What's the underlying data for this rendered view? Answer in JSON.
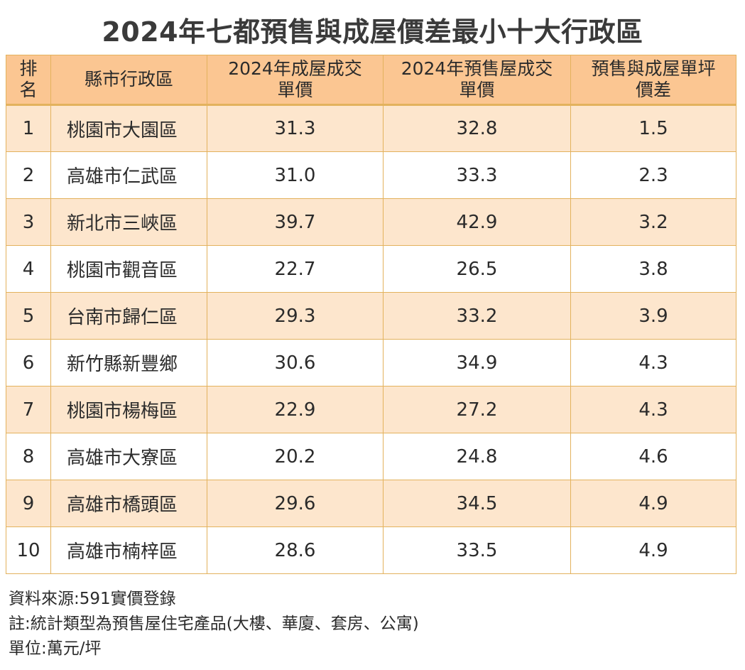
{
  "title": "2024年七都預售與成屋價差最小十大行政區",
  "chart_data": {
    "type": "table",
    "title": "2024年七都預售與成屋價差最小十大行政區",
    "columns": [
      "排名",
      "縣市行政區",
      "2024年成屋成交單價",
      "2024年預售屋成交單價",
      "預售與成屋單坪價差"
    ],
    "header_lines": [
      [
        "排",
        "名"
      ],
      [
        "縣市行政區",
        ""
      ],
      [
        "2024年成屋成交",
        "單價"
      ],
      [
        "2024年預售屋成交",
        "單價"
      ],
      [
        "預售與成屋單坪",
        "價差"
      ]
    ],
    "rows": [
      {
        "rank": "1",
        "region": "桃園市大園區",
        "existing": "31.3",
        "presale": "32.8",
        "diff": "1.5"
      },
      {
        "rank": "2",
        "region": "高雄市仁武區",
        "existing": "31.0",
        "presale": "33.3",
        "diff": "2.3"
      },
      {
        "rank": "3",
        "region": "新北市三峽區",
        "existing": "39.7",
        "presale": "42.9",
        "diff": "3.2"
      },
      {
        "rank": "4",
        "region": "桃園市觀音區",
        "existing": "22.7",
        "presale": "26.5",
        "diff": "3.8"
      },
      {
        "rank": "5",
        "region": "台南市歸仁區",
        "existing": "29.3",
        "presale": "33.2",
        "diff": "3.9"
      },
      {
        "rank": "6",
        "region": "新竹縣新豐鄉",
        "existing": "30.6",
        "presale": "34.9",
        "diff": "4.3"
      },
      {
        "rank": "7",
        "region": "桃園市楊梅區",
        "existing": "22.9",
        "presale": "27.2",
        "diff": "4.3"
      },
      {
        "rank": "8",
        "region": "高雄市大寮區",
        "existing": "20.2",
        "presale": "24.8",
        "diff": "4.6"
      },
      {
        "rank": "9",
        "region": "高雄市橋頭區",
        "existing": "29.6",
        "presale": "34.5",
        "diff": "4.9"
      },
      {
        "rank": "10",
        "region": "高雄市楠梓區",
        "existing": "28.6",
        "presale": "33.5",
        "diff": "4.9"
      }
    ]
  },
  "notes": {
    "source": "資料來源:591實價登錄",
    "note": "註:統計類型為預售屋住宅產品(大樓、華廈、套房、公寓)",
    "unit": "單位:萬元/坪"
  },
  "colors": {
    "header_bg": "#fbc692",
    "stripe_bg": "#fde6cd",
    "border": "#e3b25d",
    "title_text": "#3a3a3a"
  }
}
